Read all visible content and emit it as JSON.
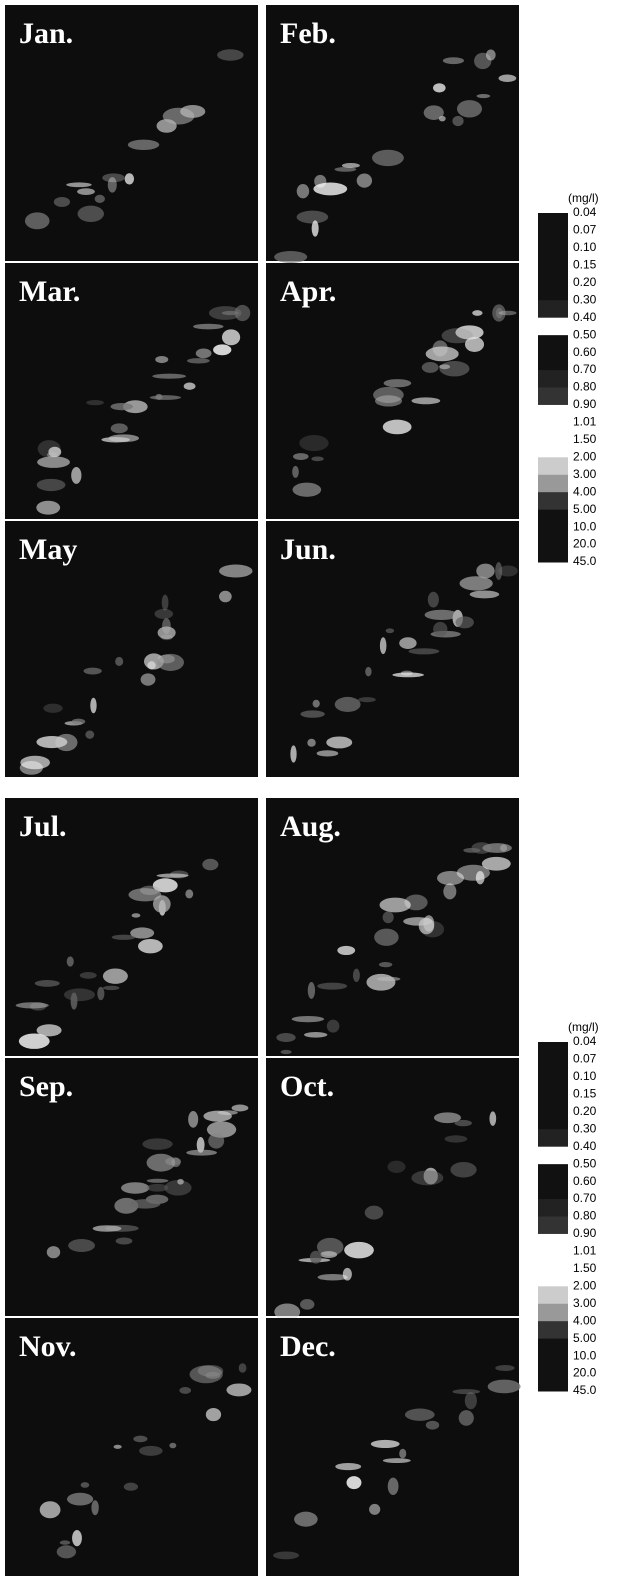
{
  "panels_top": [
    "Jan.",
    "Feb.",
    "Mar.",
    "Apr.",
    "May",
    "Jun."
  ],
  "panels_bottom": [
    "Jul.",
    "Aug.",
    "Sep.",
    "Oct.",
    "Nov.",
    "Dec."
  ],
  "legend_top": {
    "unit": "(mg/l)",
    "labels": [
      "0.04",
      "0.07",
      "0.10",
      "0.15",
      "0.20",
      "0.30",
      "0.40",
      "0.50",
      "0.60",
      "0.70",
      "0.80",
      "0.90",
      "1.01",
      "1.50",
      "2.00",
      "3.00",
      "4.00",
      "5.00",
      "10.0",
      "20.0",
      "45.0"
    ]
  },
  "legend_bottom": {
    "unit": "(mg/l)",
    "labels": [
      "0.04",
      "0.07",
      "0.10",
      "0.15",
      "0.20",
      "0.30",
      "0.40",
      "0.50",
      "0.60",
      "0.70",
      "0.80",
      "0.90",
      "1.01",
      "1.50",
      "2.00",
      "3.00",
      "4.00",
      "5.00",
      "10.0",
      "20.0",
      "45.0"
    ]
  }
}
